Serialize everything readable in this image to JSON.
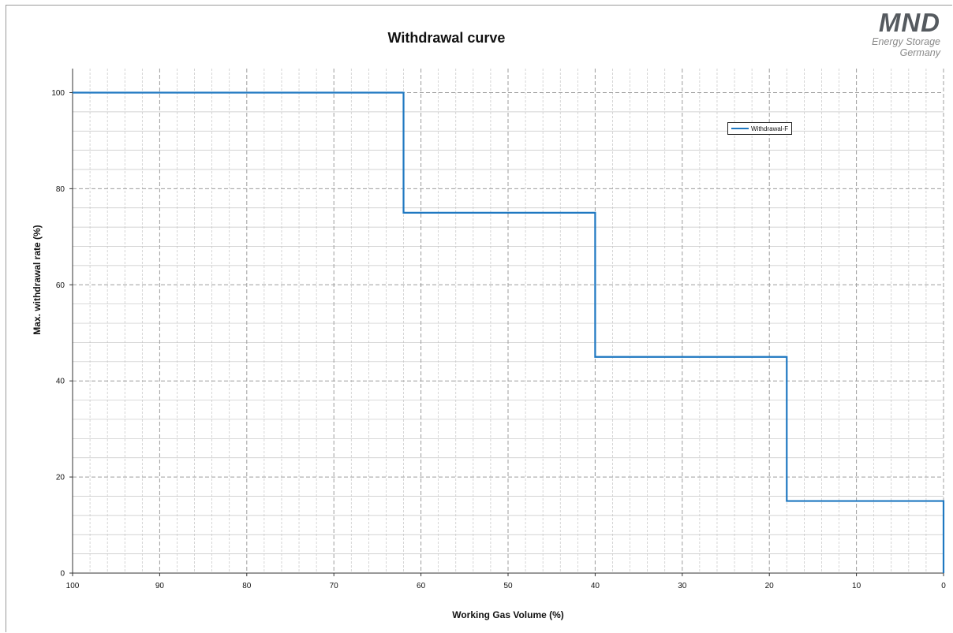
{
  "logo": {
    "mark": "MND",
    "line1": "Energy Storage",
    "line2": "Germany"
  },
  "colors": {
    "series": "#1f78c1",
    "grid_major": "#9c9c9c",
    "grid_minor": "#c4c4c4",
    "logo_green": "#8dc63f"
  },
  "chart_data": {
    "type": "line",
    "step": true,
    "title": "Withdrawal curve",
    "xlabel": "Working Gas Volume (%)",
    "ylabel": "Max.  withdrawal  rate (%)",
    "xlim": [
      100,
      0
    ],
    "x_reversed": true,
    "ylim": [
      0,
      105
    ],
    "x_ticks": [
      "100",
      "90",
      "80",
      "70",
      "60",
      "50",
      "40",
      "30",
      "20",
      "10",
      "0"
    ],
    "y_ticks": [
      "0",
      "20",
      "40",
      "60",
      "80",
      "100"
    ],
    "grid": true,
    "legend_position": "top-right",
    "series": [
      {
        "name": "Withdrawal-F",
        "x": [
          100,
          62,
          62,
          40,
          40,
          18,
          18,
          0,
          0
        ],
        "y": [
          100,
          100,
          75,
          75,
          45,
          45,
          15,
          15,
          0
        ]
      }
    ]
  }
}
